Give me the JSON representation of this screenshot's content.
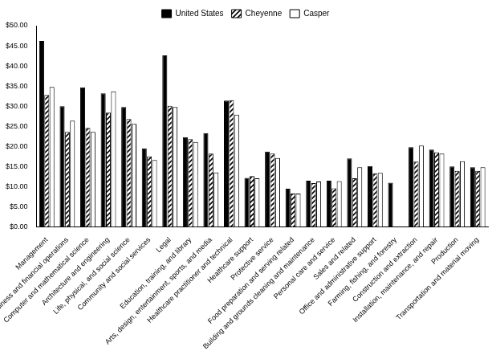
{
  "chart_data": {
    "type": "bar",
    "categories": [
      "Management",
      "Business and financial operations",
      "Computer and mathematical science",
      "Architecture and engineering",
      "Life, physical, and social science",
      "Community and social services",
      "Legal",
      "Education, training, and library",
      "Arts, design, entertainment, sports, and media",
      "Healthcare practitioner and technical",
      "Healthcare support",
      "Protective service",
      "Food preparation and serving related",
      "Building and grounds cleaning and maintenance",
      "Personal care and service",
      "Sales and related",
      "Office and administrative support",
      "Farming, fishing, and forestry",
      "Construction and extraction",
      "Installation, maintenance, and repair",
      "Production",
      "Transportation and material moving"
    ],
    "series": [
      {
        "name": "United States",
        "color": "#000000",
        "values": [
          46.2,
          30.0,
          34.7,
          33.2,
          29.8,
          19.5,
          42.6,
          22.3,
          23.3,
          31.4,
          12.2,
          18.7,
          9.5,
          11.5,
          11.5,
          17.0,
          15.1,
          11.0,
          19.8,
          19.2,
          15.0,
          14.8
        ]
      },
      {
        "name": "Cheyenne",
        "color": "#000000",
        "values": [
          32.8,
          23.6,
          24.6,
          28.4,
          26.8,
          17.5,
          30.1,
          21.8,
          18.2,
          31.5,
          12.6,
          18.2,
          8.3,
          10.9,
          9.6,
          12.1,
          13.3,
          null,
          16.2,
          18.5,
          13.9,
          13.9
        ]
      },
      {
        "name": "Casper",
        "color": "#ffffff",
        "values": [
          34.8,
          26.4,
          23.6,
          33.7,
          25.6,
          16.6,
          29.8,
          21.1,
          13.5,
          27.9,
          12.1,
          17.1,
          8.3,
          11.3,
          11.4,
          14.8,
          13.4,
          null,
          20.2,
          18.2,
          16.3,
          14.8
        ]
      }
    ],
    "ylim": [
      0,
      50
    ],
    "yticks": [
      {
        "value": 0,
        "label": "$0.00"
      },
      {
        "value": 5,
        "label": "$5.00"
      },
      {
        "value": 10,
        "label": "$10.00"
      },
      {
        "value": 15,
        "label": "$15.00"
      },
      {
        "value": 20,
        "label": "$20.00"
      },
      {
        "value": 25,
        "label": "$25.00"
      },
      {
        "value": 30,
        "label": "$30.00"
      },
      {
        "value": 35,
        "label": "$35.00"
      },
      {
        "value": 40,
        "label": "$40.00"
      },
      {
        "value": 45,
        "label": "$45.00"
      },
      {
        "value": 50,
        "label": "$50.00"
      }
    ],
    "grid": false,
    "legend": "top"
  }
}
